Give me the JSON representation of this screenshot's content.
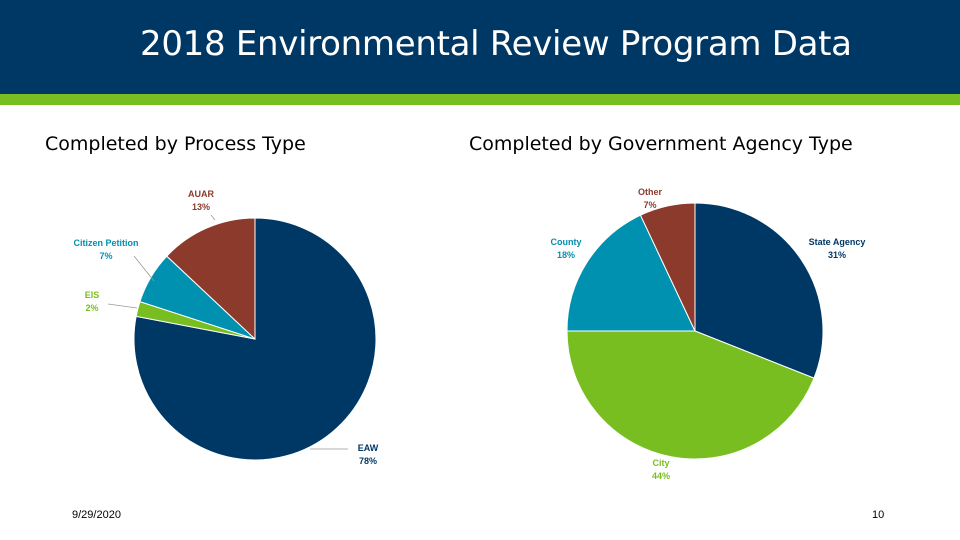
{
  "slide": {
    "title": "2018 Environmental Review Program Data",
    "footer_date": "9/29/2020",
    "page_number": "10"
  },
  "colors": {
    "header_bg": "#003865",
    "accent_bar": "#78BE21",
    "navy": "#003865",
    "green": "#78BE21",
    "teal": "#0090B0",
    "brown": "#8B3A2B"
  },
  "chart_data": [
    {
      "type": "pie",
      "title": "Completed by Process Type",
      "slices": [
        {
          "label": "EAW",
          "value": 78,
          "value_label": "78%",
          "color": "#003865"
        },
        {
          "label": "EIS",
          "value": 2,
          "value_label": "2%",
          "color": "#78BE21"
        },
        {
          "label": "Citizen Petition",
          "value": 7,
          "value_label": "7%",
          "color": "#0090B0"
        },
        {
          "label": "AUAR",
          "value": 13,
          "value_label": "13%",
          "color": "#8B3A2B"
        }
      ]
    },
    {
      "type": "pie",
      "title": "Completed by Government Agency Type",
      "slices": [
        {
          "label": "State Agency",
          "value": 31,
          "value_label": "31%",
          "color": "#003865"
        },
        {
          "label": "City",
          "value": 44,
          "value_label": "44%",
          "color": "#78BE21"
        },
        {
          "label": "County",
          "value": 18,
          "value_label": "18%",
          "color": "#0090B0"
        },
        {
          "label": "Other",
          "value": 7,
          "value_label": "7%",
          "color": "#8B3A2B"
        }
      ]
    }
  ]
}
